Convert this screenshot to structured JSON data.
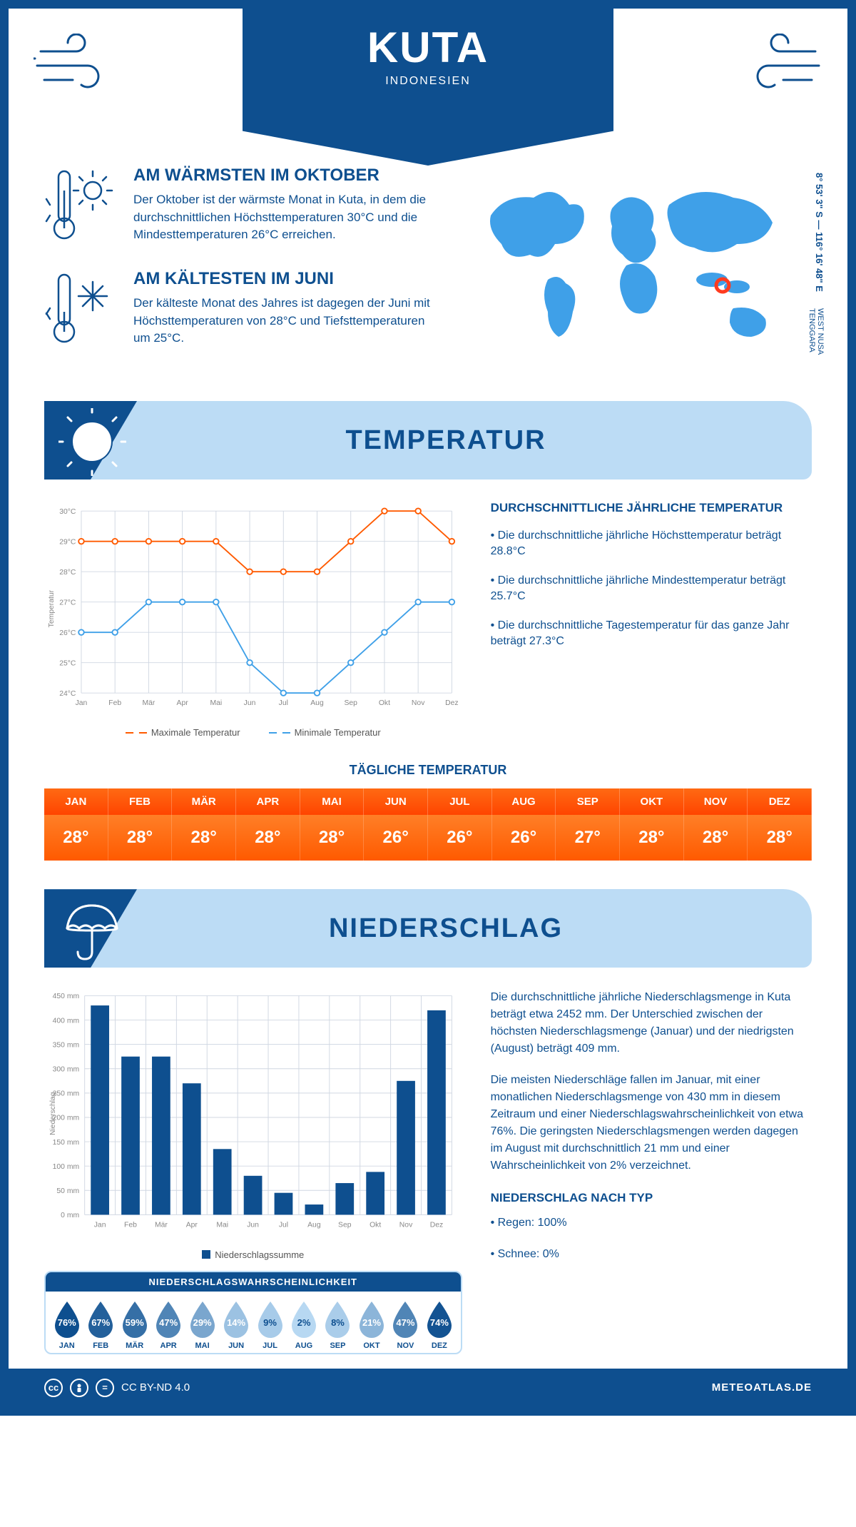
{
  "header": {
    "title": "KUTA",
    "subtitle": "INDONESIEN",
    "coords": "8° 53' 3\" S — 116° 16' 48\" E",
    "region": "WEST NUSA TENGGARA"
  },
  "colors": {
    "primary": "#0e4f8f",
    "light": "#bcdcf5",
    "sky": "#3fa0e8",
    "orange1": "#ff6a13",
    "orange2": "#ff4500",
    "max_line": "#ff5a00",
    "min_line": "#3fa0e8",
    "grid": "#cfd8e3",
    "marker_red": "#ff3b1f"
  },
  "facts": {
    "warm": {
      "title": "AM WÄRMSTEN IM OKTOBER",
      "text": "Der Oktober ist der wärmste Monat in Kuta, in dem die durchschnittlichen Höchsttemperaturen 30°C und die Mindesttemperaturen 26°C erreichen."
    },
    "cold": {
      "title": "AM KÄLTESTEN IM JUNI",
      "text": "Der kälteste Monat des Jahres ist dagegen der Juni mit Höchsttemperaturen von 28°C und Tiefsttemperaturen um 25°C."
    }
  },
  "sections": {
    "temp": "TEMPERATUR",
    "precip": "NIEDERSCHLAG"
  },
  "months": [
    "Jan",
    "Feb",
    "Mär",
    "Apr",
    "Mai",
    "Jun",
    "Jul",
    "Aug",
    "Sep",
    "Okt",
    "Nov",
    "Dez"
  ],
  "months_upper": [
    "JAN",
    "FEB",
    "MÄR",
    "APR",
    "MAI",
    "JUN",
    "JUL",
    "AUG",
    "SEP",
    "OKT",
    "NOV",
    "DEZ"
  ],
  "temp_chart": {
    "type": "line",
    "y_axis_label": "Temperatur",
    "ylim": [
      24,
      30
    ],
    "ytick_step": 1,
    "max_series": [
      29,
      29,
      29,
      29,
      29,
      28,
      28,
      28,
      29,
      30,
      30,
      29
    ],
    "min_series": [
      26,
      26,
      27,
      27,
      27,
      25,
      24,
      24,
      25,
      26,
      27,
      27
    ],
    "max_color": "#ff5a00",
    "min_color": "#3fa0e8",
    "bg": "#ffffff",
    "grid_color": "#d0d7e2",
    "line_width": 2,
    "marker_size": 4,
    "legend_max": "Maximale Temperatur",
    "legend_min": "Minimale Temperatur"
  },
  "temp_text": {
    "title": "DURCHSCHNITTLICHE JÄHRLICHE TEMPERATUR",
    "b1": "• Die durchschnittliche jährliche Höchsttemperatur beträgt 28.8°C",
    "b2": "• Die durchschnittliche jährliche Mindesttemperatur beträgt 25.7°C",
    "b3": "• Die durchschnittliche Tagestemperatur für das ganze Jahr beträgt 27.3°C"
  },
  "daily": {
    "title": "TÄGLICHE TEMPERATUR",
    "values": [
      "28°",
      "28°",
      "28°",
      "28°",
      "28°",
      "26°",
      "26°",
      "26°",
      "27°",
      "28°",
      "28°",
      "28°"
    ]
  },
  "precip_chart": {
    "type": "bar",
    "y_axis_label": "Niederschlag",
    "ylim": [
      0,
      450
    ],
    "ytick_step": 50,
    "values": [
      430,
      325,
      325,
      270,
      135,
      80,
      45,
      21,
      65,
      88,
      275,
      420
    ],
    "bar_color": "#0e4f8f",
    "grid_color": "#d0d7e2",
    "legend": "Niederschlagssumme"
  },
  "precip_text": {
    "p1": "Die durchschnittliche jährliche Niederschlagsmenge in Kuta beträgt etwa 2452 mm. Der Unterschied zwischen der höchsten Niederschlagsmenge (Januar) und der niedrigsten (August) beträgt 409 mm.",
    "p2": "Die meisten Niederschläge fallen im Januar, mit einer monatlichen Niederschlagsmenge von 430 mm in diesem Zeitraum und einer Niederschlagswahrscheinlichkeit von etwa 76%. Die geringsten Niederschlagsmengen werden dagegen im August mit durchschnittlich 21 mm und einer Wahrscheinlichkeit von 2% verzeichnet.",
    "type_title": "NIEDERSCHLAG NACH TYP",
    "type_1": "• Regen: 100%",
    "type_2": "• Schnee: 0%"
  },
  "prob": {
    "title": "NIEDERSCHLAGSWAHRSCHEINLICHKEIT",
    "values": [
      76,
      67,
      59,
      47,
      29,
      14,
      9,
      2,
      8,
      21,
      47,
      74
    ]
  },
  "footer": {
    "license": "CC BY-ND 4.0",
    "site": "METEOATLAS.DE"
  }
}
